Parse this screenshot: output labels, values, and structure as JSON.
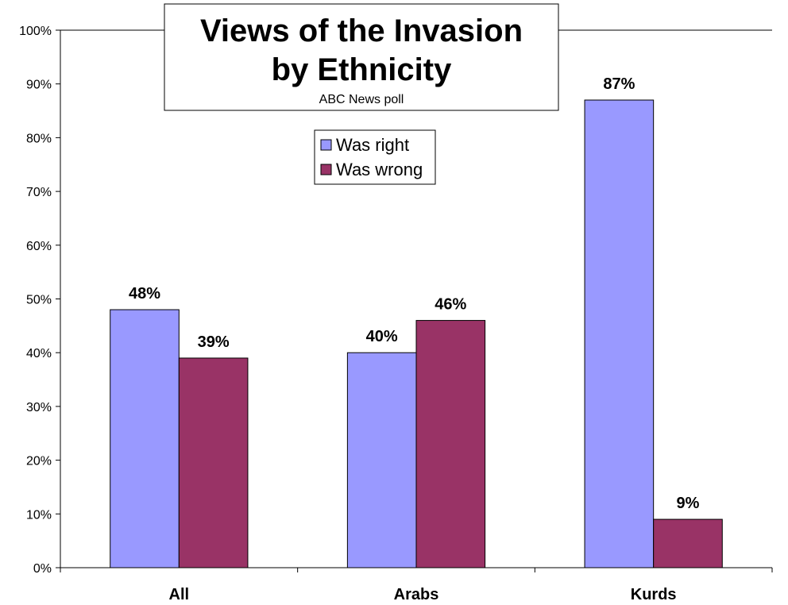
{
  "chart_data": {
    "type": "bar",
    "title": "Views of the Invasion by Ethnicity",
    "title_lines": [
      "Views of the Invasion",
      "by Ethnicity"
    ],
    "subtitle": "ABC News poll",
    "categories": [
      "All",
      "Arabs",
      "Kurds"
    ],
    "series": [
      {
        "name": "Was right",
        "values": [
          48,
          40,
          87
        ],
        "color": "#9999ff"
      },
      {
        "name": "Was wrong",
        "values": [
          39,
          46,
          9
        ],
        "color": "#993366"
      }
    ],
    "data_labels": [
      [
        "48%",
        "40%",
        "87%"
      ],
      [
        "39%",
        "46%",
        "9%"
      ]
    ],
    "ylim": [
      0,
      100
    ],
    "yticks": [
      0,
      10,
      20,
      30,
      40,
      50,
      60,
      70,
      80,
      90,
      100
    ],
    "ytick_labels": [
      "0%",
      "10%",
      "20%",
      "30%",
      "40%",
      "50%",
      "60%",
      "70%",
      "80%",
      "90%",
      "100%"
    ],
    "xlabel": "",
    "ylabel": "",
    "grid": false,
    "legend_position": "top-center"
  }
}
